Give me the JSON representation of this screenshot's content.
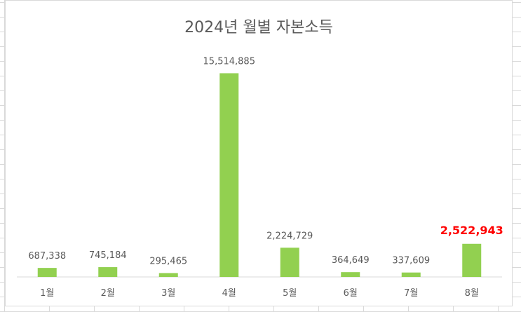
{
  "chart_data": {
    "type": "bar",
    "title": "2024년 월별 자본소득",
    "xlabel": "",
    "ylabel": "",
    "ylim": [
      0,
      16500000
    ],
    "grid": false,
    "categories": [
      "1월",
      "2월",
      "3월",
      "4월",
      "5월",
      "6월",
      "7월",
      "8월"
    ],
    "values": [
      687338,
      745184,
      295465,
      15514885,
      2224729,
      364649,
      337609,
      2522943
    ],
    "value_labels": [
      "687,338",
      "745,184",
      "295,465",
      "15,514,885",
      "2,224,729",
      "364,649",
      "337,609",
      "2,522,943"
    ],
    "highlight_index": 7,
    "colors": {
      "bar": "#92d050",
      "highlight_label": "#ff0000",
      "text": "#595959"
    }
  }
}
